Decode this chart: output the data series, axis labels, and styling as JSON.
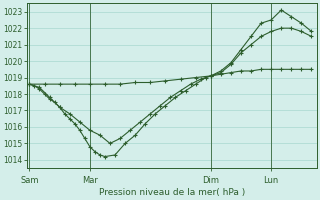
{
  "background_color": "#d4eeea",
  "grid_color": "#a8d8d0",
  "line_color": "#2d5e2d",
  "xlabel": "Pression niveau de la mer( hPa )",
  "ylim": [
    1013.5,
    1023.5
  ],
  "yticks": [
    1014,
    1015,
    1016,
    1017,
    1018,
    1019,
    1020,
    1021,
    1022,
    1023
  ],
  "xtick_labels": [
    "Sam",
    "Mar",
    "Dim",
    "Lun"
  ],
  "xtick_positions": [
    0,
    24,
    72,
    96
  ],
  "vlines": [
    0,
    24,
    72,
    96
  ],
  "xlim": [
    -1,
    114
  ],
  "line1_x": [
    0,
    2,
    4,
    6,
    8,
    10,
    12,
    14,
    16,
    18,
    20,
    22,
    24,
    26,
    28,
    30,
    34,
    38,
    42,
    46,
    50,
    54,
    58,
    62,
    66,
    70,
    72,
    76,
    80,
    84,
    88,
    92,
    96,
    100,
    104,
    108,
    112
  ],
  "line1_y": [
    1018.6,
    1018.5,
    1018.3,
    1018.0,
    1017.7,
    1017.5,
    1017.2,
    1016.8,
    1016.5,
    1016.2,
    1015.8,
    1015.3,
    1014.8,
    1014.5,
    1014.3,
    1014.2,
    1014.3,
    1015.0,
    1015.5,
    1016.2,
    1016.8,
    1017.3,
    1017.8,
    1018.2,
    1018.6,
    1019.0,
    1019.1,
    1019.2,
    1019.3,
    1019.4,
    1019.4,
    1019.5,
    1019.5,
    1019.5,
    1019.5,
    1019.5,
    1019.5
  ],
  "line2_x": [
    0,
    6,
    12,
    18,
    24,
    30,
    36,
    42,
    48,
    54,
    60,
    66,
    72,
    76,
    80,
    84,
    88,
    92,
    96,
    100,
    104,
    108,
    112
  ],
  "line2_y": [
    1018.6,
    1018.6,
    1018.6,
    1018.6,
    1018.6,
    1018.6,
    1018.6,
    1018.7,
    1018.7,
    1018.8,
    1018.9,
    1019.0,
    1019.1,
    1019.4,
    1019.9,
    1020.7,
    1021.5,
    1022.3,
    1022.5,
    1023.1,
    1022.7,
    1022.3,
    1021.8
  ],
  "line3_x": [
    0,
    4,
    8,
    12,
    16,
    20,
    24,
    28,
    32,
    36,
    40,
    44,
    48,
    52,
    56,
    60,
    64,
    68,
    72,
    76,
    80,
    84,
    88,
    92,
    96,
    100,
    104,
    108,
    112
  ],
  "line3_y": [
    1018.6,
    1018.4,
    1017.8,
    1017.2,
    1016.8,
    1016.3,
    1015.8,
    1015.5,
    1015.0,
    1015.3,
    1015.8,
    1016.3,
    1016.8,
    1017.3,
    1017.8,
    1018.2,
    1018.6,
    1018.9,
    1019.1,
    1019.3,
    1019.8,
    1020.5,
    1021.0,
    1021.5,
    1021.8,
    1022.0,
    1022.0,
    1021.8,
    1021.5
  ]
}
